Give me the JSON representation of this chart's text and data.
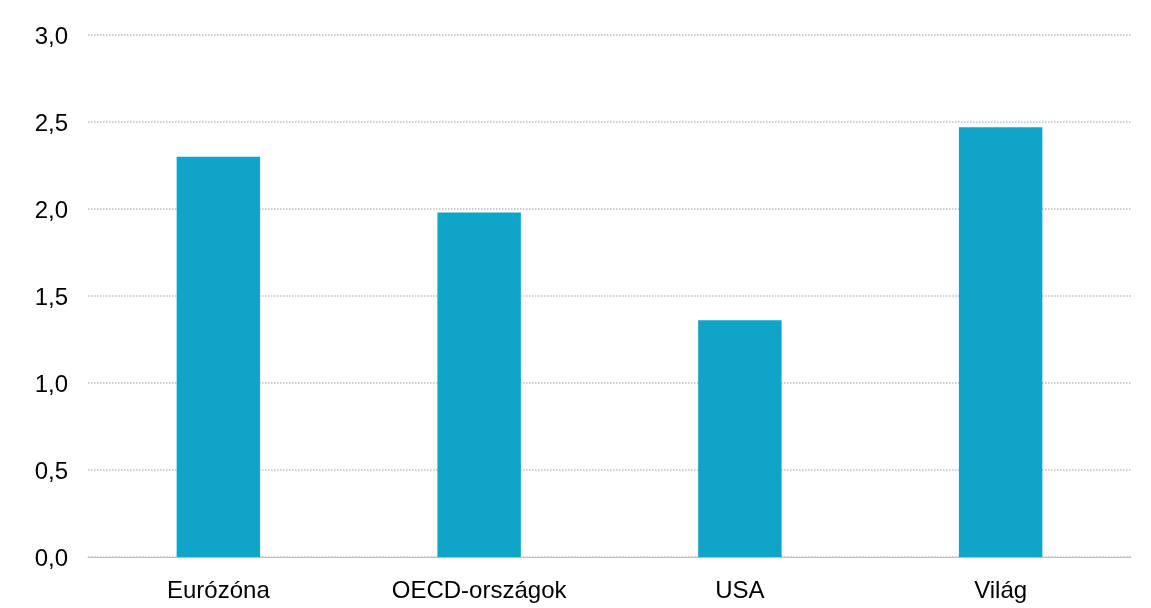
{
  "chart_data": {
    "type": "bar",
    "categories": [
      "Eurózóna",
      "OECD-országok",
      "USA",
      "Világ"
    ],
    "values": [
      2.3,
      1.98,
      1.36,
      2.47
    ],
    "color": "#10a4c6",
    "ylim": [
      0,
      3
    ],
    "yticks": [
      {
        "value": 0,
        "label": "0,0"
      },
      {
        "value": 0.5,
        "label": "0,5"
      },
      {
        "value": 1,
        "label": "1,0"
      },
      {
        "value": 1.5,
        "label": "1,5"
      },
      {
        "value": 2,
        "label": "2,0"
      },
      {
        "value": 2.5,
        "label": "2,5"
      },
      {
        "value": 3,
        "label": "3,0"
      }
    ],
    "grid": "y"
  }
}
